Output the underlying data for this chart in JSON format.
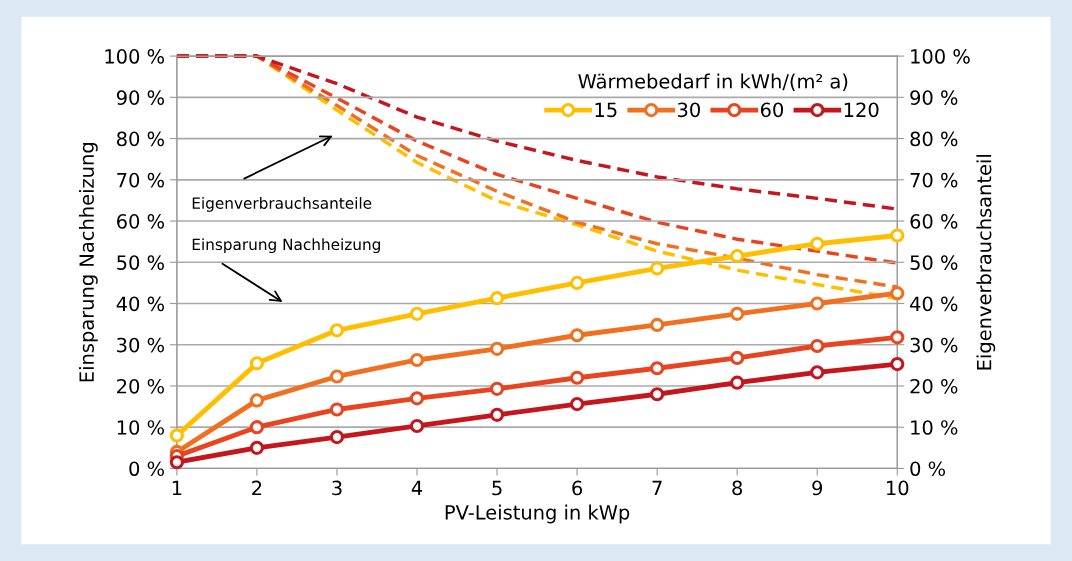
{
  "chart_data": {
    "type": "line",
    "xlabel": "PV-Leistung in kWp",
    "ylabel": "Einsparung Nachheizung",
    "y2label": "Eigenverbrauchsanteil",
    "legend_title": "Wärmebedarf in kWh/(m² a)",
    "x": [
      1,
      2,
      3,
      4,
      5,
      6,
      7,
      8,
      9,
      10
    ],
    "series": [
      {
        "name": "15",
        "color": "#ffbf00",
        "values": [
          8,
          25.5,
          33.5,
          37.5,
          41.3,
          45,
          48.5,
          51.5,
          54.5,
          56.5
        ]
      },
      {
        "name": "30",
        "color": "#f07020",
        "values": [
          4,
          16.5,
          22.3,
          26.3,
          29,
          32.3,
          34.8,
          37.5,
          40,
          42.5
        ]
      },
      {
        "name": "60",
        "color": "#e84420",
        "values": [
          3,
          10,
          14.3,
          17,
          19.3,
          22,
          24.3,
          26.8,
          29.7,
          31.8
        ]
      },
      {
        "name": "120",
        "color": "#c4161c",
        "values": [
          1.5,
          5,
          7.6,
          10.3,
          13,
          15.6,
          18,
          20.8,
          23.3,
          25.3
        ]
      },
      {
        "color": "#ffbf00",
        "axis": "y2",
        "marker": "none",
        "line_style": "dashed",
        "values": [
          100,
          100,
          86.9,
          74.2,
          64.9,
          59.1,
          52.7,
          48.1,
          44.6,
          41.2
        ]
      },
      {
        "color": "#f07020",
        "axis": "y2",
        "marker": "none",
        "line_style": "dashed",
        "values": [
          100,
          100,
          88,
          75.9,
          67.2,
          59.7,
          54.5,
          51,
          47,
          44
        ]
      },
      {
        "color": "#e84420",
        "axis": "y2",
        "marker": "none",
        "line_style": "dashed",
        "values": [
          100,
          100,
          89.8,
          79.4,
          71.3,
          65.5,
          59.7,
          55.6,
          52.7,
          49.8
        ]
      },
      {
        "color": "#c4161c",
        "axis": "y2",
        "marker": "none",
        "line_style": "dashed",
        "values": [
          100,
          100,
          93.3,
          85.2,
          79.4,
          74.7,
          70.7,
          67.8,
          65.5,
          62.9
        ]
      }
    ],
    "marker": "circle",
    "line_style": "solid",
    "grid": "y",
    "legend": "top right",
    "xlim": [
      1,
      10
    ],
    "xticks": [
      1,
      2,
      3,
      4,
      5,
      6,
      7,
      8,
      9,
      10
    ],
    "ylim": [
      0,
      100
    ],
    "yticks": [
      {
        "value": 0,
        "label": "0 %"
      },
      {
        "value": 10,
        "label": "10 %"
      },
      {
        "value": 20,
        "label": "20 %"
      },
      {
        "value": 30,
        "label": "30 %"
      },
      {
        "value": 40,
        "label": "40 %"
      },
      {
        "value": 50,
        "label": "50 %"
      },
      {
        "value": 60,
        "label": "60 %"
      },
      {
        "value": 70,
        "label": "70 %"
      },
      {
        "value": 80,
        "label": "80 %"
      },
      {
        "value": 90,
        "label": "90 %"
      },
      {
        "value": 100,
        "label": "100 %"
      }
    ],
    "y2lim": [
      0,
      100
    ],
    "y2ticks": [
      {
        "value": 0,
        "label": "0 %"
      },
      {
        "value": 10,
        "label": "10 %"
      },
      {
        "value": 20,
        "label": "20 %"
      },
      {
        "value": 30,
        "label": "30 %"
      },
      {
        "value": 40,
        "label": "40 %"
      },
      {
        "value": 50,
        "label": "50 %"
      },
      {
        "value": 60,
        "label": "60 %"
      },
      {
        "value": 70,
        "label": "70 %"
      },
      {
        "value": 80,
        "label": "80 %"
      },
      {
        "value": 90,
        "label": "90 %"
      },
      {
        "value": 100,
        "label": "100 %"
      }
    ],
    "annotations": [
      "Eigenverbrauchsanteile",
      "Einsparung Nachheizung"
    ]
  }
}
